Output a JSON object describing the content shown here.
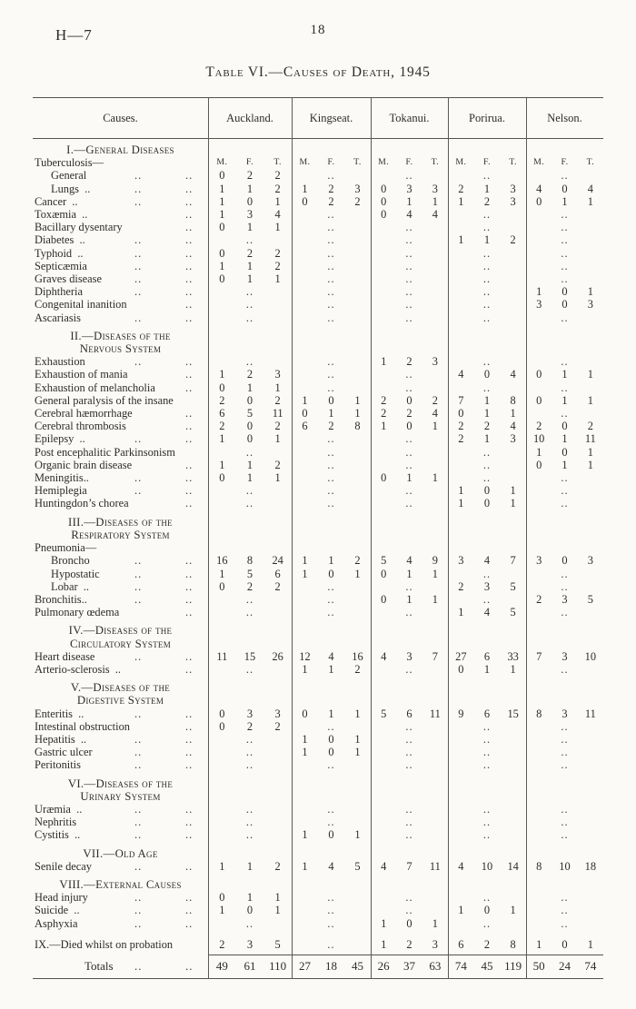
{
  "page": {
    "doc_ref": "H—7",
    "page_number": "18",
    "title": "Table VI.—Causes of Death, 1945"
  },
  "table": {
    "causes_header": "Causes.",
    "hospitals": [
      "Auckland.",
      "Kingseat.",
      "Tokanui.",
      "Porirua.",
      "Nelson."
    ],
    "subcolumns": [
      "M.",
      "F.",
      "T."
    ],
    "empty_marker": "..",
    "leader_marker": "..",
    "sections": [
      {
        "heading": [
          "I.—General Diseases"
        ],
        "rows": [
          {
            "label": "Tuberculosis—",
            "leaders": 0,
            "mft": true
          },
          {
            "label": "General",
            "indent": true,
            "leaders": 2,
            "cells": [
              [
                0,
                2,
                2
              ],
              null,
              null,
              null,
              null
            ]
          },
          {
            "label": "Lungs ..",
            "indent": true,
            "leaders": 2,
            "cells": [
              [
                1,
                1,
                2
              ],
              [
                1,
                2,
                3
              ],
              [
                0,
                3,
                3
              ],
              [
                2,
                1,
                3
              ],
              [
                4,
                0,
                4
              ]
            ]
          },
          {
            "label": "Cancer ..",
            "leaders": 2,
            "cells": [
              [
                1,
                0,
                1
              ],
              [
                0,
                2,
                2
              ],
              [
                0,
                1,
                1
              ],
              [
                1,
                2,
                3
              ],
              [
                0,
                1,
                1
              ]
            ]
          },
          {
            "label": "Toxæmia ..",
            "leaders": 1,
            "cells": [
              [
                1,
                3,
                4
              ],
              null,
              [
                0,
                4,
                4
              ],
              null,
              null
            ]
          },
          {
            "label": "Bacillary dysentary",
            "leaders": 1,
            "cells": [
              [
                0,
                1,
                1
              ],
              null,
              null,
              null,
              null
            ]
          },
          {
            "label": "Diabetes ..",
            "leaders": 2,
            "cells": [
              null,
              null,
              null,
              [
                1,
                1,
                2
              ],
              null
            ]
          },
          {
            "label": "Typhoid ..",
            "leaders": 2,
            "cells": [
              [
                0,
                2,
                2
              ],
              null,
              null,
              null,
              null
            ]
          },
          {
            "label": "Septicæmia",
            "leaders": 2,
            "cells": [
              [
                1,
                1,
                2
              ],
              null,
              null,
              null,
              null
            ]
          },
          {
            "label": "Graves disease",
            "leaders": 2,
            "cells": [
              [
                0,
                1,
                1
              ],
              null,
              null,
              null,
              null
            ]
          },
          {
            "label": "Diphtheria",
            "leaders": 2,
            "cells": [
              null,
              null,
              null,
              null,
              [
                1,
                0,
                1
              ]
            ]
          },
          {
            "label": "Congenital inanition",
            "leaders": 1,
            "cells": [
              null,
              null,
              null,
              null,
              [
                3,
                0,
                3
              ]
            ]
          },
          {
            "label": "Ascariasis",
            "leaders": 2,
            "cells": [
              null,
              null,
              null,
              null,
              null
            ]
          }
        ]
      },
      {
        "heading": [
          "II.—Diseases of the",
          "Nervous System"
        ],
        "rows": [
          {
            "label": "Exhaustion",
            "leaders": 2,
            "cells": [
              null,
              null,
              [
                1,
                2,
                3
              ],
              null,
              null
            ]
          },
          {
            "label": "Exhaustion of mania",
            "leaders": 1,
            "cells": [
              [
                1,
                2,
                3
              ],
              null,
              null,
              [
                4,
                0,
                4
              ],
              [
                0,
                1,
                1
              ]
            ]
          },
          {
            "label": "Exhaustion of melancholia",
            "leaders": 1,
            "cells": [
              [
                0,
                1,
                1
              ],
              null,
              null,
              null,
              null
            ]
          },
          {
            "label": "General paralysis of the insane",
            "leaders": 0,
            "cells": [
              [
                2,
                0,
                2
              ],
              [
                1,
                0,
                1
              ],
              [
                2,
                0,
                2
              ],
              [
                7,
                1,
                8
              ],
              [
                0,
                1,
                1
              ]
            ]
          },
          {
            "label": "Cerebral hæmorrhage",
            "leaders": 1,
            "cells": [
              [
                6,
                5,
                11
              ],
              [
                0,
                1,
                1
              ],
              [
                2,
                2,
                4
              ],
              [
                0,
                1,
                1
              ],
              null
            ]
          },
          {
            "label": "Cerebral thrombosis",
            "leaders": 1,
            "cells": [
              [
                2,
                0,
                2
              ],
              [
                6,
                2,
                8
              ],
              [
                1,
                0,
                1
              ],
              [
                2,
                2,
                4
              ],
              [
                2,
                0,
                2
              ]
            ]
          },
          {
            "label": "Epilepsy ..",
            "leaders": 2,
            "cells": [
              [
                1,
                0,
                1
              ],
              null,
              null,
              [
                2,
                1,
                3
              ],
              [
                10,
                1,
                11
              ]
            ]
          },
          {
            "label": "Post encephalitic Parkinsonism",
            "leaders": 0,
            "cells": [
              null,
              null,
              null,
              null,
              [
                1,
                0,
                1
              ]
            ]
          },
          {
            "label": "Organic brain disease",
            "leaders": 1,
            "cells": [
              [
                1,
                1,
                2
              ],
              null,
              null,
              null,
              [
                0,
                1,
                1
              ]
            ]
          },
          {
            "label": "Meningitis..",
            "leaders": 2,
            "cells": [
              [
                0,
                1,
                1
              ],
              null,
              [
                0,
                1,
                1
              ],
              null,
              null
            ]
          },
          {
            "label": "Hemiplegia",
            "leaders": 2,
            "cells": [
              null,
              null,
              null,
              [
                1,
                0,
                1
              ],
              null
            ]
          },
          {
            "label": "Huntingdon’s chorea",
            "leaders": 1,
            "cells": [
              null,
              null,
              null,
              [
                1,
                0,
                1
              ],
              null
            ]
          }
        ]
      },
      {
        "heading": [
          "III.—Diseases of the",
          "Respiratory System"
        ],
        "rows": [
          {
            "label": "Pneumonia—",
            "leaders": 0
          },
          {
            "label": "Broncho",
            "indent": true,
            "leaders": 2,
            "cells": [
              [
                16,
                8,
                24
              ],
              [
                1,
                1,
                2
              ],
              [
                5,
                4,
                9
              ],
              [
                3,
                4,
                7
              ],
              [
                3,
                0,
                3
              ]
            ]
          },
          {
            "label": "Hypostatic",
            "indent": true,
            "leaders": 2,
            "cells": [
              [
                1,
                5,
                6
              ],
              [
                1,
                0,
                1
              ],
              [
                0,
                1,
                1
              ],
              null,
              null
            ]
          },
          {
            "label": "Lobar ..",
            "indent": true,
            "leaders": 2,
            "cells": [
              [
                0,
                2,
                2
              ],
              null,
              null,
              [
                2,
                3,
                5
              ],
              null
            ]
          },
          {
            "label": "Bronchitis..",
            "leaders": 2,
            "cells": [
              null,
              null,
              [
                0,
                1,
                1
              ],
              null,
              [
                2,
                3,
                5
              ]
            ]
          },
          {
            "label": "Pulmonary œdema",
            "leaders": 1,
            "cells": [
              null,
              null,
              null,
              [
                1,
                4,
                5
              ],
              null
            ]
          }
        ]
      },
      {
        "heading": [
          "IV.—Diseases of the",
          "Circulatory System"
        ],
        "rows": [
          {
            "label": "Heart disease",
            "leaders": 2,
            "cells": [
              [
                11,
                15,
                26
              ],
              [
                12,
                4,
                16
              ],
              [
                4,
                3,
                7
              ],
              [
                27,
                6,
                33
              ],
              [
                7,
                3,
                10
              ]
            ]
          },
          {
            "label": "Arterio-sclerosis ..",
            "leaders": 1,
            "cells": [
              null,
              [
                1,
                1,
                2
              ],
              null,
              [
                0,
                1,
                1
              ],
              null
            ]
          }
        ]
      },
      {
        "heading": [
          "V.—Diseases of the",
          "Digestive System"
        ],
        "rows": [
          {
            "label": "Enteritis ..",
            "leaders": 2,
            "cells": [
              [
                0,
                3,
                3
              ],
              [
                0,
                1,
                1
              ],
              [
                5,
                6,
                11
              ],
              [
                9,
                6,
                15
              ],
              [
                8,
                3,
                11
              ]
            ]
          },
          {
            "label": "Intestinal obstruction",
            "leaders": 1,
            "cells": [
              [
                0,
                2,
                2
              ],
              null,
              null,
              null,
              null
            ]
          },
          {
            "label": "Hepatitis ..",
            "leaders": 2,
            "cells": [
              null,
              [
                1,
                0,
                1
              ],
              null,
              null,
              null
            ]
          },
          {
            "label": "Gastric ulcer",
            "leaders": 2,
            "cells": [
              null,
              [
                1,
                0,
                1
              ],
              null,
              null,
              null
            ]
          },
          {
            "label": "Peritonitis",
            "leaders": 2,
            "cells": [
              null,
              null,
              null,
              null,
              null
            ]
          }
        ]
      },
      {
        "heading": [
          "VI.—Diseases of the",
          "Urinary System"
        ],
        "rows": [
          {
            "label": "Uræmia ..",
            "leaders": 2,
            "cells": [
              null,
              null,
              null,
              null,
              null
            ]
          },
          {
            "label": "Nephritis",
            "leaders": 2,
            "cells": [
              null,
              null,
              null,
              null,
              null
            ]
          },
          {
            "label": "Cystitis ..",
            "leaders": 2,
            "cells": [
              null,
              [
                1,
                0,
                1
              ],
              null,
              null,
              null
            ]
          }
        ]
      },
      {
        "heading": [
          "VII.—Old Age"
        ],
        "rows": [
          {
            "label": "Senile decay",
            "leaders": 2,
            "cells": [
              [
                1,
                1,
                2
              ],
              [
                1,
                4,
                5
              ],
              [
                4,
                7,
                11
              ],
              [
                4,
                10,
                14
              ],
              [
                8,
                10,
                18
              ]
            ]
          }
        ]
      },
      {
        "heading": [
          "VIII.—External Causes"
        ],
        "rows": [
          {
            "label": "Head injury",
            "leaders": 2,
            "cells": [
              [
                0,
                1,
                1
              ],
              null,
              null,
              null,
              null
            ]
          },
          {
            "label": "Suicide ..",
            "leaders": 2,
            "cells": [
              [
                1,
                0,
                1
              ],
              null,
              null,
              [
                1,
                0,
                1
              ],
              null
            ]
          },
          {
            "label": "Asphyxia",
            "leaders": 2,
            "cells": [
              null,
              null,
              [
                1,
                0,
                1
              ],
              null,
              null
            ]
          }
        ]
      },
      {
        "heading": [],
        "gap": "large",
        "rows": [
          {
            "label": "IX.—Died whilst on probation",
            "leaders": 0,
            "cells": [
              [
                2,
                3,
                5
              ],
              null,
              [
                1,
                2,
                3
              ],
              [
                6,
                2,
                8
              ],
              [
                1,
                0,
                1
              ]
            ]
          }
        ]
      }
    ],
    "totals": {
      "label": "Totals",
      "leaders": 2,
      "cells": [
        [
          49,
          61,
          110
        ],
        [
          27,
          18,
          45
        ],
        [
          26,
          37,
          63
        ],
        [
          74,
          45,
          119
        ],
        [
          50,
          24,
          74
        ]
      ]
    }
  }
}
